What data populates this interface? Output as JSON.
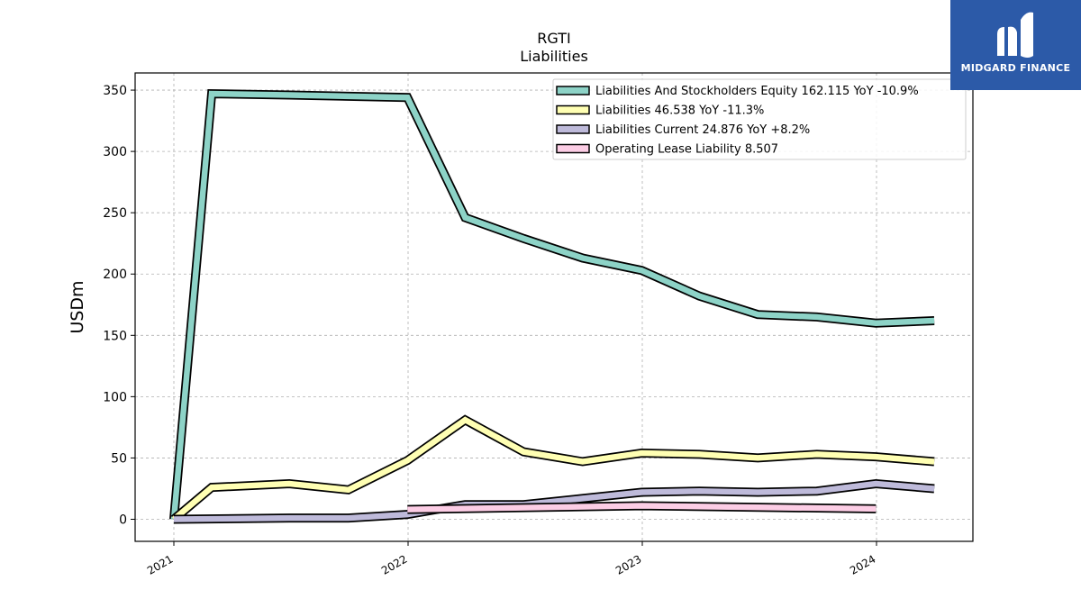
{
  "brand": {
    "name": "MIDGARD FINANCE",
    "color": "#2c5aa8"
  },
  "chart_data": {
    "type": "line",
    "title": "RGTI",
    "subtitle": "Liabilities",
    "xlabel": "",
    "ylabel": "USDm",
    "ylim": [
      -18,
      364
    ],
    "yticks": [
      0,
      50,
      100,
      150,
      200,
      250,
      300,
      350
    ],
    "xticks": [
      "2021",
      "2022",
      "2023",
      "2024"
    ],
    "grid": true,
    "legend_position": "top-right",
    "series": [
      {
        "name": "Liabilities And Stockholders Equity  162.115 YoY -10.9%",
        "color": "#8dd3c7",
        "x": [
          "2021-01-01",
          "2021-03-01",
          "2021-06-30",
          "2021-09-30",
          "2021-12-31",
          "2022-03-31",
          "2022-06-30",
          "2022-09-30",
          "2022-12-31",
          "2023-03-31",
          "2023-06-30",
          "2023-09-30",
          "2023-12-31",
          "2024-03-31"
        ],
        "y": [
          0,
          347,
          346,
          345,
          344,
          246,
          229,
          213,
          203,
          182,
          167,
          165,
          160,
          162
        ]
      },
      {
        "name": "Liabilities  46.538 YoY -11.3%",
        "color": "#ffffb3",
        "x": [
          "2021-01-01",
          "2021-03-01",
          "2021-06-30",
          "2021-09-30",
          "2021-12-31",
          "2022-03-31",
          "2022-06-30",
          "2022-09-30",
          "2022-12-31",
          "2023-03-31",
          "2023-06-30",
          "2023-09-30",
          "2023-12-31",
          "2024-03-31"
        ],
        "y": [
          0,
          26,
          29,
          24,
          48,
          81,
          55,
          47,
          54,
          53,
          50,
          53,
          51,
          47
        ]
      },
      {
        "name": "Liabilities Current  24.876 YoY +8.2%",
        "color": "#bebada",
        "x": [
          "2021-01-01",
          "2021-06-30",
          "2021-09-30",
          "2021-12-31",
          "2022-03-31",
          "2022-06-30",
          "2022-09-30",
          "2022-12-31",
          "2023-03-31",
          "2023-06-30",
          "2023-09-30",
          "2023-12-31",
          "2024-03-31"
        ],
        "y": [
          0,
          1,
          1,
          4,
          12,
          12,
          17,
          22,
          23,
          22,
          23,
          29,
          25
        ]
      },
      {
        "name": "Operating Lease Liability  8.507",
        "color": "#fccde5",
        "x": [
          "2021-12-31",
          "2022-12-31",
          "2023-12-31"
        ],
        "y": [
          8,
          11,
          8.5
        ]
      }
    ]
  }
}
